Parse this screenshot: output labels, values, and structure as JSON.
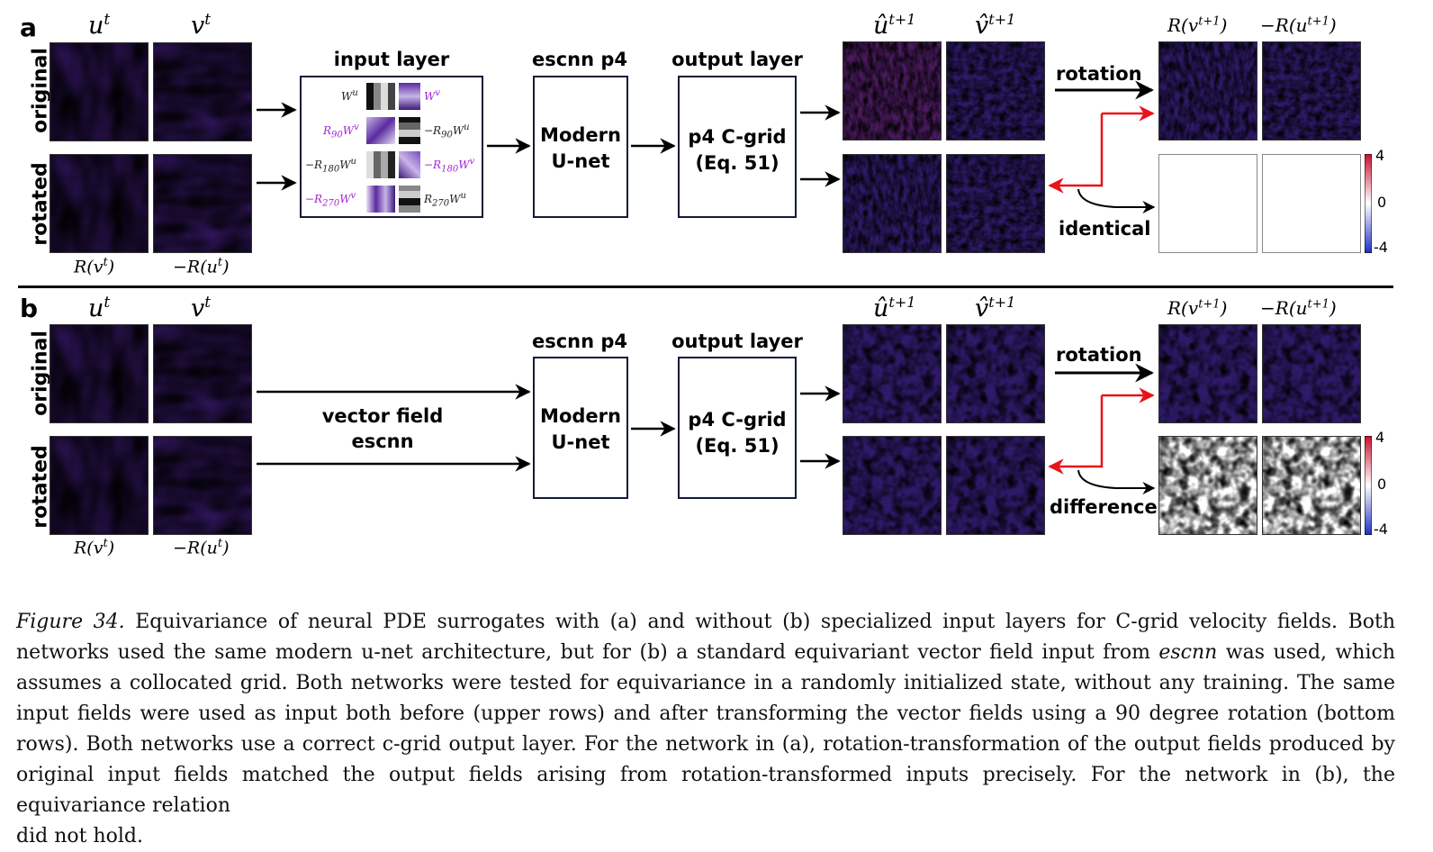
{
  "colors": {
    "arrow": "#000000",
    "red_arrow": "#e8141a",
    "box_border": "#111a3a",
    "purple_text": "#a324d6",
    "cbar_pos": "#c8102e",
    "cbar_neg": "#1d2fc4"
  },
  "panel_a": {
    "letter": "a",
    "row_original": "original",
    "row_rotated": "rotated",
    "input_headers": [
      "u",
      "v"
    ],
    "input_sup": "t",
    "rotated_labels": [
      "R(v",
      "−R(u"
    ],
    "input_layer_title": "input layer",
    "weights": {
      "row1_left": "W",
      "row1_left_sup": "u",
      "row1_right": "W",
      "row1_right_sup": "v",
      "row2_left": "R",
      "row2_left_sub": "90",
      "row2_left_tail": "W",
      "row2_left_sup": "v",
      "row2_right": "−R",
      "row2_right_sub": "90",
      "row2_right_tail": "W",
      "row2_right_sup": "u",
      "row3_left": "−R",
      "row3_left_sub": "180",
      "row3_left_tail": "W",
      "row3_left_sup": "u",
      "row3_right": "−R",
      "row3_right_sub": "180",
      "row3_right_tail": "W",
      "row3_right_sup": "v",
      "row4_left": "−R",
      "row4_left_sub": "270",
      "row4_left_tail": "W",
      "row4_left_sup": "v",
      "row4_right": "R",
      "row4_right_sub": "270",
      "row4_right_tail": "W",
      "row4_right_sup": "u"
    },
    "escnn_title": "escnn p4",
    "unet_line1": "Modern",
    "unet_line2": "U-net",
    "output_layer_title": "output layer",
    "cgrid_line1": "p4 C-grid",
    "cgrid_line2": "(Eq. 51)",
    "output_headers": [
      "u",
      "v"
    ],
    "output_sup": "t+1",
    "rotation_label": "rotation",
    "result_headers": [
      "R(",
      "−R("
    ],
    "result_vars": [
      "v",
      "u"
    ],
    "identical_label": "identical",
    "cbar_ticks": [
      "4",
      "0",
      "-4"
    ]
  },
  "panel_b": {
    "letter": "b",
    "row_original": "original",
    "row_rotated": "rotated",
    "vector_field_line1": "vector field",
    "vector_field_line2": "escnn",
    "escnn_title": "escnn p4",
    "unet_line1": "Modern",
    "unet_line2": "U-net",
    "output_layer_title": "output layer",
    "cgrid_line1": "p4 C-grid",
    "cgrid_line2": "(Eq. 51)",
    "rotation_label": "rotation",
    "difference_label": "difference",
    "cbar_ticks": [
      "4",
      "0",
      "-4"
    ]
  },
  "caption": {
    "label": "Figure 34.",
    "part1": " Equivariance of neural PDE surrogates with (a) and without (b) specialized input layers for C-grid velocity fields. Both networks used the same modern u-net architecture, but for (b) a standard equivariant vector field input from ",
    "escnn": "escnn",
    "part2": " was used, which assumes a collocated grid. Both networks were tested for equivariance in a randomly initialized state, without any training. The same input fields were used as input both before (upper rows) and after transforming the vector fields using a 90 degree rotation (bottom rows). Both networks use a correct c-grid output layer. For the network in (a), rotation-transformation of the output fields produced by original input fields matched the output fields arising from rotation-transformed inputs precisely. For the network in (b), the equivariance relation",
    "last_line": "did not hold."
  }
}
